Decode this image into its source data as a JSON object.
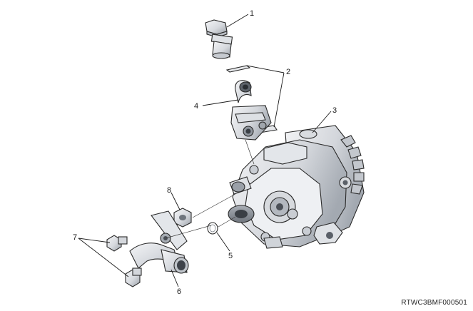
{
  "figure": {
    "callouts": [
      "1",
      "2",
      "3",
      "4",
      "5",
      "6",
      "7",
      "8"
    ],
    "code": "RTWC3BMF000501"
  },
  "palette": {
    "metal_light": "#eef0f3",
    "metal_mid": "#c9cdd3",
    "metal_dark": "#8f959d",
    "line": "#2a2a2a"
  }
}
